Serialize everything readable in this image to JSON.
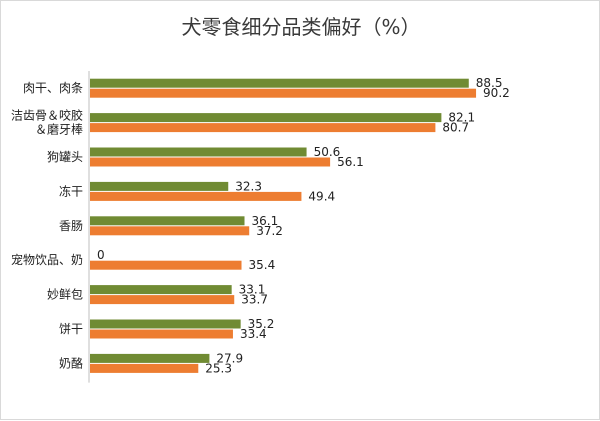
{
  "chart_data": {
    "type": "bar",
    "orientation": "horizontal",
    "title": "犬零食细分品类偏好（%）",
    "categories": [
      "肉干、肉条",
      "洁齿骨＆咬胶＆磨牙棒",
      "狗罐头",
      "冻干",
      "香肠",
      "宠物饮品、奶",
      "妙鲜包",
      "饼干",
      "奶酪"
    ],
    "category_lines": [
      [
        "肉干、肉条"
      ],
      [
        "洁齿骨＆咬胶",
        "＆磨牙棒"
      ],
      [
        "狗罐头"
      ],
      [
        "冻干"
      ],
      [
        "香肠"
      ],
      [
        "宠物饮品、奶"
      ],
      [
        "妙鲜包"
      ],
      [
        "饼干"
      ],
      [
        "奶酪"
      ]
    ],
    "series": [
      {
        "color": "#708b33",
        "values": [
          88.5,
          82.1,
          50.6,
          32.3,
          36.1,
          0,
          33.1,
          35.2,
          27.9
        ],
        "labels": [
          "88.5",
          "82.1",
          "50.6",
          "32.3",
          "36.1",
          "0",
          "33.1",
          "35.2",
          "27.9"
        ]
      },
      {
        "color": "#ed7d31",
        "values": [
          90.2,
          80.7,
          56.1,
          49.4,
          37.2,
          35.4,
          33.7,
          33.4,
          25.3
        ],
        "labels": [
          "90.2",
          "80.7",
          "56.1",
          "49.4",
          "37.2",
          "35.4",
          "33.7",
          "33.4",
          "25.3"
        ]
      }
    ],
    "xlim": [
      0,
      100
    ],
    "grid": false,
    "legend": "none"
  }
}
